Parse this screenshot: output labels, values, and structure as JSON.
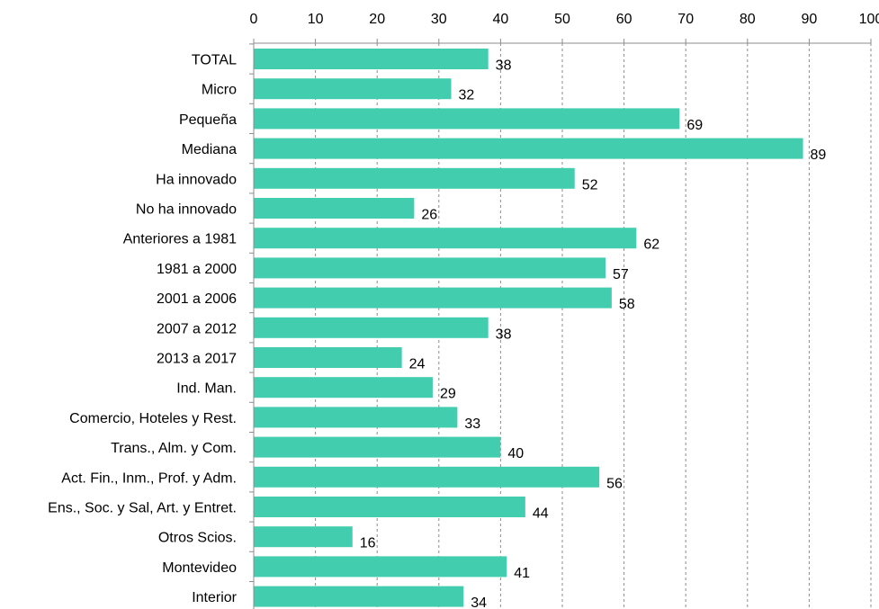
{
  "chart_data": {
    "type": "bar",
    "orientation": "horizontal",
    "categories": [
      "TOTAL",
      "Micro",
      "Pequeña",
      "Mediana",
      "Ha innovado",
      "No ha innovado",
      "Anteriores a 1981",
      "1981 a 2000",
      "2001 a 2006",
      "2007 a 2012",
      "2013 a 2017",
      "Ind. Man.",
      "Comercio, Hoteles y Rest.",
      "Trans., Alm. y Com.",
      "Act. Fin., Inm., Prof. y Adm.",
      "Ens., Soc. y Sal, Art. y Entret.",
      "Otros Scios.",
      "Montevideo",
      "Interior"
    ],
    "values": [
      38,
      32,
      69,
      89,
      52,
      26,
      62,
      57,
      58,
      38,
      24,
      29,
      33,
      40,
      56,
      44,
      16,
      41,
      34
    ],
    "value_labels": [
      "38",
      "32",
      "69",
      "89",
      "52",
      "26",
      "62",
      "57",
      "58",
      "38",
      "24",
      "29",
      "33",
      "40",
      "56",
      "44",
      "16",
      "41",
      "34"
    ],
    "xlim": [
      0,
      100
    ],
    "x_ticks": [
      0,
      10,
      20,
      30,
      40,
      50,
      60,
      70,
      80,
      90,
      100
    ],
    "x_tick_labels": [
      "0",
      "10",
      "20",
      "30",
      "40",
      "50",
      "60",
      "70",
      "80",
      "90",
      "100"
    ],
    "x_axis_position": "top",
    "grid": "vertical dashed",
    "bar_color": "#42CDAE",
    "legend": "none"
  }
}
